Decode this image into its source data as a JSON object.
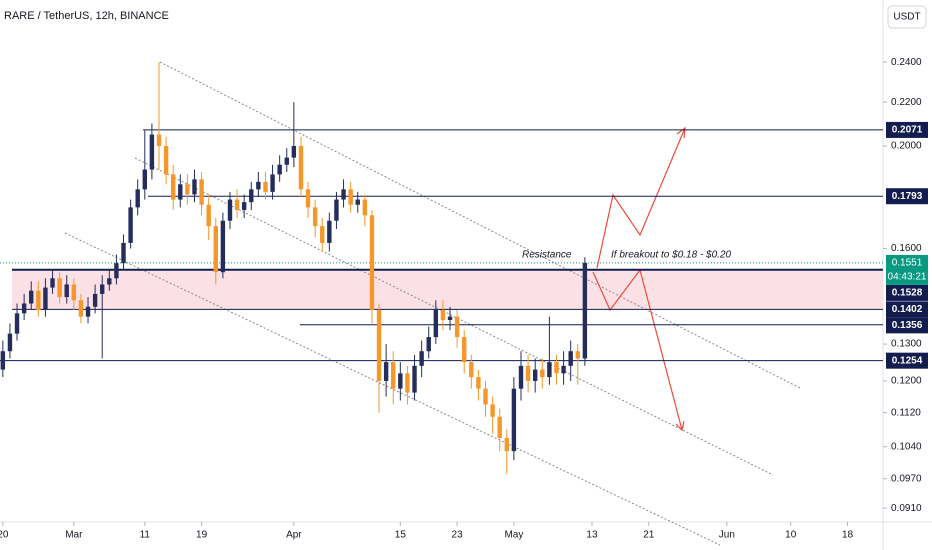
{
  "chart_data": {
    "type": "candlestick",
    "title": "RARE / TetherUS, 12h, BINANCE",
    "currency": "USDT",
    "x": [
      0,
      1,
      2,
      3,
      4,
      5,
      6,
      7,
      8,
      9,
      10,
      11,
      12,
      13,
      14,
      15,
      16,
      17,
      18,
      19,
      20,
      21,
      22,
      23,
      24,
      25,
      26,
      27,
      28,
      29,
      30,
      31,
      32,
      33,
      34,
      35,
      36,
      37,
      38,
      39,
      40,
      41,
      42,
      43,
      44,
      45,
      46,
      47,
      48,
      49,
      50,
      51,
      52,
      53,
      54,
      55,
      56,
      57,
      58,
      59,
      60,
      61,
      62,
      63,
      64,
      65,
      66,
      67,
      68,
      69,
      70,
      71,
      72,
      73,
      74,
      75,
      76,
      77,
      78,
      79,
      80,
      81,
      82
    ],
    "open": [
      0.123,
      0.128,
      0.133,
      0.139,
      0.142,
      0.146,
      0.14,
      0.147,
      0.15,
      0.144,
      0.148,
      0.143,
      0.138,
      0.141,
      0.145,
      0.148,
      0.15,
      0.155,
      0.162,
      0.175,
      0.182,
      0.19,
      0.205,
      0.2,
      0.188,
      0.178,
      0.184,
      0.18,
      0.186,
      0.176,
      0.168,
      0.152,
      0.17,
      0.178,
      0.174,
      0.177,
      0.182,
      0.185,
      0.181,
      0.188,
      0.192,
      0.195,
      0.2,
      0.182,
      0.175,
      0.168,
      0.162,
      0.17,
      0.178,
      0.182,
      0.176,
      0.178,
      0.172,
      0.14,
      0.12,
      0.125,
      0.118,
      0.122,
      0.117,
      0.124,
      0.128,
      0.132,
      0.14,
      0.137,
      0.138,
      0.132,
      0.125,
      0.121,
      0.118,
      0.114,
      0.111,
      0.106,
      0.103,
      0.118,
      0.124,
      0.12,
      0.123,
      0.121,
      0.125,
      0.122,
      0.124,
      0.128,
      0.126
    ],
    "high": [
      0.131,
      0.136,
      0.142,
      0.145,
      0.149,
      0.149,
      0.15,
      0.153,
      0.152,
      0.151,
      0.15,
      0.145,
      0.144,
      0.148,
      0.151,
      0.153,
      0.158,
      0.165,
      0.178,
      0.186,
      0.207,
      0.21,
      0.24,
      0.204,
      0.192,
      0.188,
      0.188,
      0.19,
      0.189,
      0.18,
      0.171,
      0.173,
      0.181,
      0.182,
      0.18,
      0.185,
      0.189,
      0.189,
      0.192,
      0.196,
      0.199,
      0.22,
      0.204,
      0.185,
      0.178,
      0.171,
      0.173,
      0.181,
      0.186,
      0.185,
      0.181,
      0.18,
      0.174,
      0.142,
      0.13,
      0.128,
      0.125,
      0.124,
      0.127,
      0.131,
      0.135,
      0.143,
      0.143,
      0.141,
      0.14,
      0.134,
      0.127,
      0.123,
      0.12,
      0.116,
      0.113,
      0.108,
      0.121,
      0.128,
      0.127,
      0.126,
      0.126,
      0.138,
      0.127,
      0.128,
      0.131,
      0.13,
      0.157
    ],
    "low": [
      0.121,
      0.126,
      0.131,
      0.137,
      0.14,
      0.138,
      0.138,
      0.145,
      0.142,
      0.142,
      0.14,
      0.136,
      0.136,
      0.139,
      0.126,
      0.146,
      0.148,
      0.153,
      0.16,
      0.172,
      0.178,
      0.186,
      0.19,
      0.184,
      0.174,
      0.175,
      0.176,
      0.177,
      0.172,
      0.163,
      0.148,
      0.15,
      0.167,
      0.171,
      0.171,
      0.174,
      0.179,
      0.178,
      0.178,
      0.185,
      0.189,
      0.191,
      0.179,
      0.171,
      0.164,
      0.159,
      0.159,
      0.167,
      0.175,
      0.173,
      0.173,
      0.168,
      0.136,
      0.112,
      0.116,
      0.114,
      0.115,
      0.114,
      0.115,
      0.121,
      0.126,
      0.13,
      0.134,
      0.134,
      0.129,
      0.122,
      0.118,
      0.115,
      0.111,
      0.107,
      0.103,
      0.098,
      0.101,
      0.115,
      0.117,
      0.117,
      0.118,
      0.119,
      0.119,
      0.119,
      0.12,
      0.119,
      0.124
    ],
    "close": [
      0.128,
      0.133,
      0.139,
      0.142,
      0.146,
      0.14,
      0.147,
      0.15,
      0.144,
      0.148,
      0.143,
      0.138,
      0.141,
      0.145,
      0.148,
      0.15,
      0.155,
      0.162,
      0.175,
      0.182,
      0.19,
      0.205,
      0.2,
      0.188,
      0.178,
      0.184,
      0.18,
      0.186,
      0.176,
      0.168,
      0.152,
      0.17,
      0.178,
      0.174,
      0.177,
      0.182,
      0.185,
      0.181,
      0.188,
      0.192,
      0.195,
      0.2,
      0.182,
      0.175,
      0.168,
      0.162,
      0.17,
      0.178,
      0.182,
      0.176,
      0.178,
      0.172,
      0.14,
      0.12,
      0.125,
      0.118,
      0.122,
      0.117,
      0.124,
      0.128,
      0.132,
      0.14,
      0.137,
      0.138,
      0.132,
      0.125,
      0.121,
      0.118,
      0.114,
      0.111,
      0.106,
      0.103,
      0.118,
      0.124,
      0.12,
      0.123,
      0.121,
      0.125,
      0.122,
      0.124,
      0.128,
      0.126,
      0.1551
    ],
    "up_color": "#242d5c",
    "down_color": "#f5972a",
    "log_scale": true,
    "ylim": [
      0.0883,
      0.2747
    ],
    "yticks": [
      {
        "value": 0.091,
        "label": "0.0910"
      },
      {
        "value": 0.097,
        "label": "0.0970"
      },
      {
        "value": 0.104,
        "label": "0.1040"
      },
      {
        "value": 0.112,
        "label": "0.1120"
      },
      {
        "value": 0.12,
        "label": "0.1200"
      },
      {
        "value": 0.13,
        "label": "0.1300"
      },
      {
        "value": 0.16,
        "label": "0.1600"
      },
      {
        "value": 0.2,
        "label": "0.2000"
      },
      {
        "value": 0.22,
        "label": "0.2200"
      },
      {
        "value": 0.24,
        "label": "0.2400"
      }
    ],
    "xlim": [
      -0.4,
      124
    ],
    "xticks": [
      {
        "value": 0,
        "label": "20"
      },
      {
        "value": 10,
        "label": "Mar"
      },
      {
        "value": 20,
        "label": "11"
      },
      {
        "value": 28,
        "label": "19"
      },
      {
        "value": 41,
        "label": "Apr"
      },
      {
        "value": 56,
        "label": "15"
      },
      {
        "value": 64,
        "label": "23"
      },
      {
        "value": 72,
        "label": "May"
      },
      {
        "value": 83,
        "label": "13"
      },
      {
        "value": 91,
        "label": "21"
      },
      {
        "value": 102,
        "label": "Jun"
      },
      {
        "value": 111,
        "label": "10"
      },
      {
        "value": 119,
        "label": "18"
      }
    ],
    "levels": [
      0.2071,
      0.1793,
      0.1528,
      0.1402,
      0.1356,
      0.1254
    ],
    "level_color": "#131c4f",
    "last_price_color": "#089981",
    "countdown": "04:43:21",
    "annotations": [
      "Resistance",
      "If breakout to $0.18 - $0.20"
    ]
  }
}
